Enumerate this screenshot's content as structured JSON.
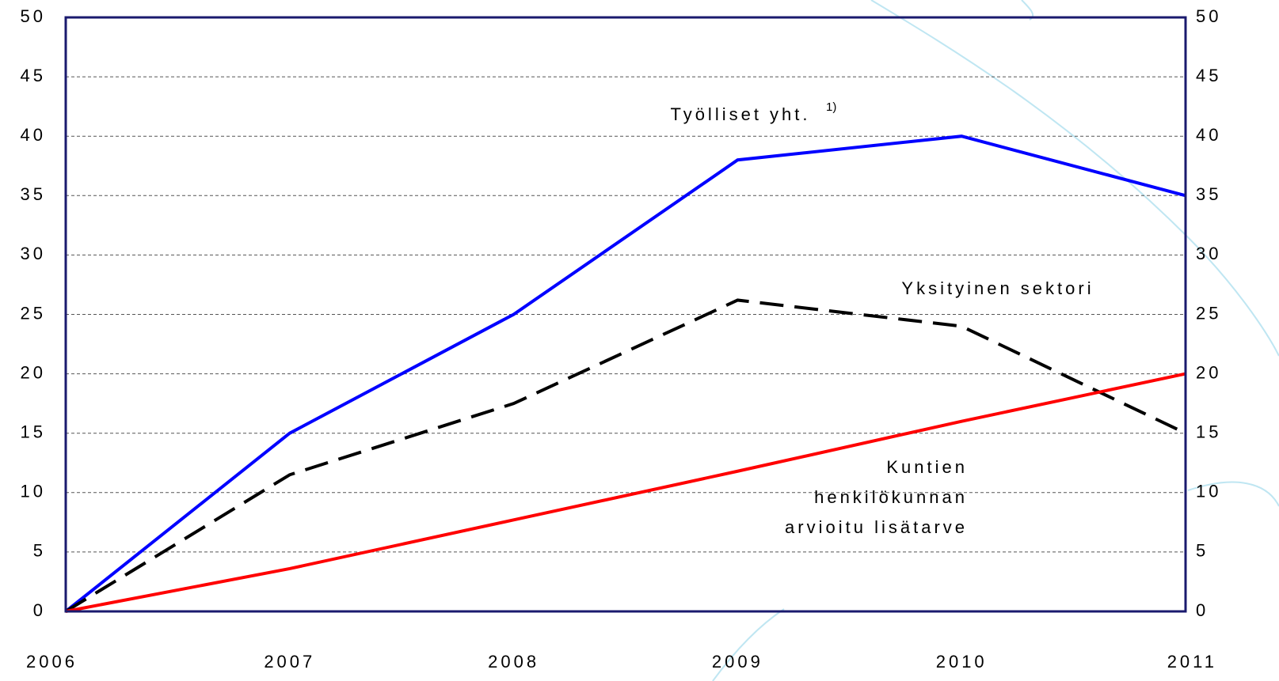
{
  "chart_data": {
    "type": "line",
    "x": [
      2006,
      2007,
      2008,
      2009,
      2010,
      2011
    ],
    "xlim": [
      2006,
      2011
    ],
    "xticks": [
      2006,
      2007,
      2008,
      2009,
      2010,
      2011
    ],
    "ylim": [
      0,
      50
    ],
    "yticks": [
      0,
      5,
      10,
      15,
      20,
      25,
      30,
      35,
      40,
      45,
      50
    ],
    "y2lim": [
      0,
      50
    ],
    "y2ticks": [
      0,
      5,
      10,
      15,
      20,
      25,
      30,
      35,
      40,
      45,
      50
    ],
    "grid": true,
    "series": [
      {
        "name": "Työlliset yht.",
        "footnote": "1)",
        "color": "#0000ff",
        "dash": false,
        "values": [
          0,
          15,
          25,
          38,
          40,
          35
        ]
      },
      {
        "name": "Yksityinen sektori",
        "color": "#000000",
        "dash": true,
        "values": [
          0,
          11.5,
          17.5,
          26.2,
          24,
          15
        ]
      },
      {
        "name": "Kuntien\nhenkilökunnan\narvioitu lisätarve",
        "color": "#ff0000",
        "dash": false,
        "values": [
          0,
          3.6,
          7.7,
          11.8,
          16,
          20
        ]
      }
    ]
  }
}
